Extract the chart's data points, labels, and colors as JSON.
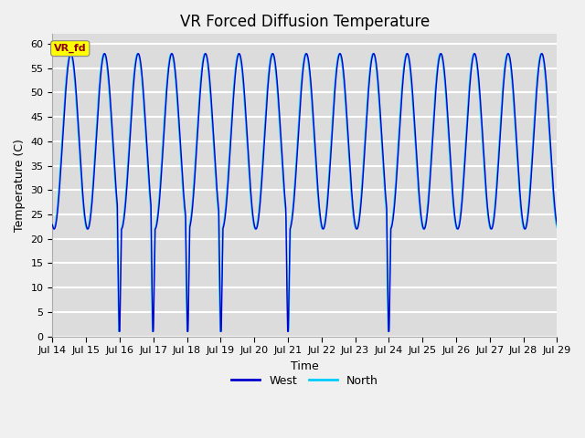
{
  "title": "VR Forced Diffusion Temperature",
  "xlabel": "Time",
  "ylabel": "Temperature (C)",
  "ylim": [
    0,
    62
  ],
  "xlim": [
    0,
    360
  ],
  "yticks": [
    0,
    5,
    10,
    15,
    20,
    25,
    30,
    35,
    40,
    45,
    50,
    55,
    60
  ],
  "xtick_positions": [
    0,
    24,
    48,
    72,
    96,
    120,
    144,
    168,
    192,
    216,
    240,
    264,
    288,
    312,
    336,
    360
  ],
  "xtick_labels": [
    "Jul 14",
    "Jul 15",
    "Jul 16",
    "Jul 17",
    "Jul 18",
    "Jul 19",
    "Jul 20",
    "Jul 21",
    "Jul 22",
    "Jul 23",
    "Jul 24",
    "Jul 25",
    "Jul 26",
    "Jul 27",
    "Jul 28",
    "Jul 29"
  ],
  "west_color": "#0000CD",
  "north_color": "#00CCFF",
  "label_text": "VR_fd",
  "label_bg": "#FFFF00",
  "label_fg": "#8B0000",
  "bg_color": "#DCDCDC",
  "fig_bg": "#F0F0F0",
  "title_fontsize": 12,
  "axis_label_fontsize": 9,
  "tick_fontsize": 8,
  "legend_fontsize": 9,
  "west_linewidth": 1.0,
  "north_linewidth": 1.0
}
